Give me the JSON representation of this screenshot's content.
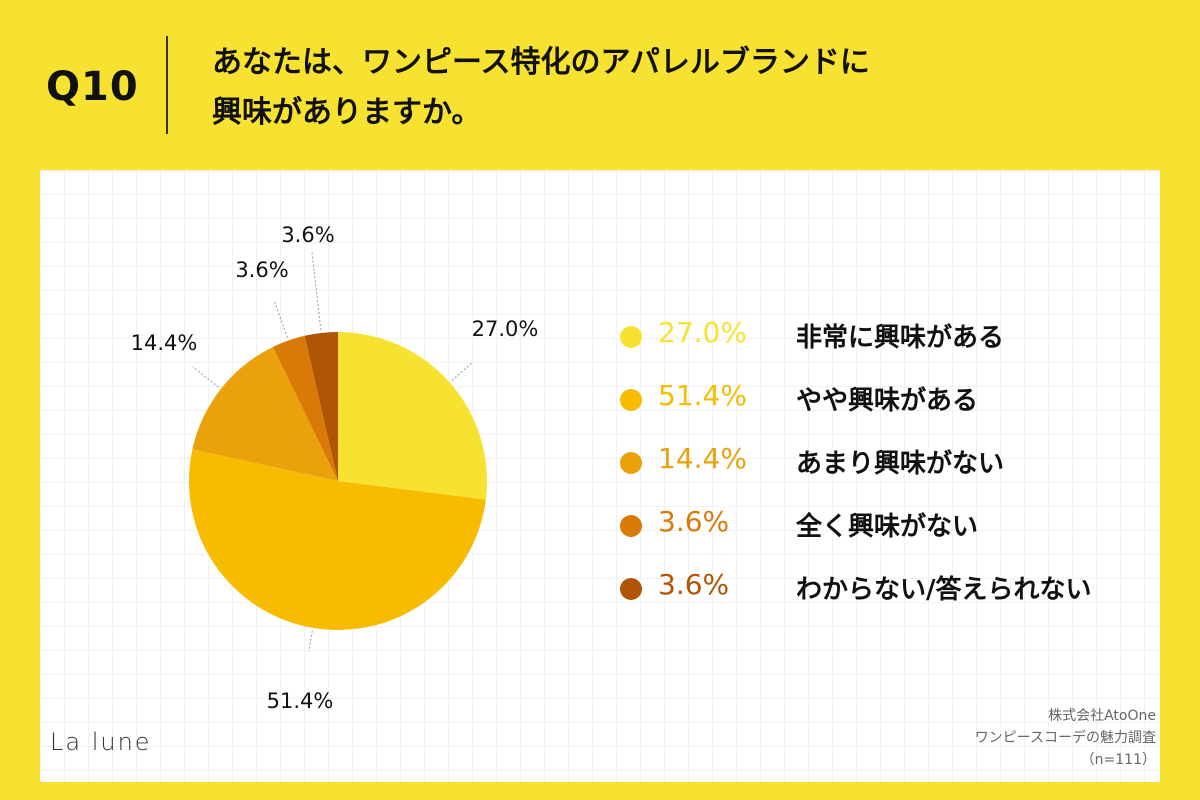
{
  "header": {
    "question_number": "Q10",
    "question_line1": "あなたは、ワンピース特化のアパレルブランドに",
    "question_line2": "興味がありますか。"
  },
  "chart_data": {
    "type": "pie",
    "slices": [
      {
        "label": "非常に興味がある",
        "value": 27.0,
        "display": "27.0%",
        "color": "#F8E231"
      },
      {
        "label": "やや興味がある",
        "value": 51.4,
        "display": "51.4%",
        "color": "#F7BC00"
      },
      {
        "label": "あまり興味がない",
        "value": 14.4,
        "display": "14.4%",
        "color": "#E9A20C"
      },
      {
        "label": "全く興味がない",
        "value": 3.6,
        "display": "3.6%",
        "color": "#D97A07"
      },
      {
        "label": "わからない/答えられない",
        "value": 3.6,
        "display": "3.6%",
        "color": "#B05506"
      }
    ]
  },
  "footer": {
    "logo": "La lune",
    "source_line1": "株式会社AtoOne",
    "source_line2": "ワンピースコーデの魅力調査",
    "source_line3": "（n=111）"
  }
}
